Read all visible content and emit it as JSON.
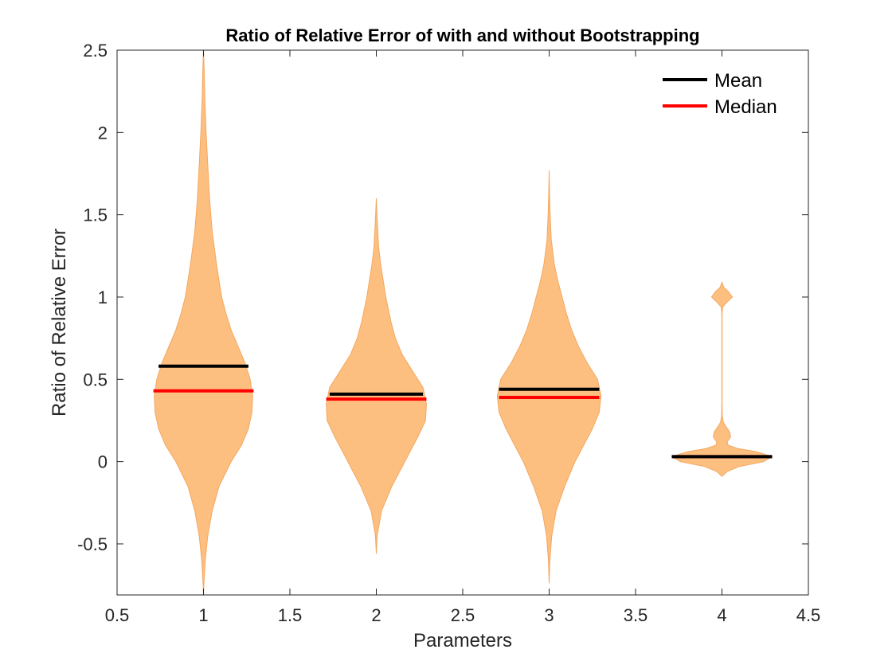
{
  "chart_data": {
    "type": "violin",
    "title": "Ratio of Relative Error of with and without Bootstrapping",
    "xlabel": "Parameters",
    "ylabel": "Ratio of Relative Error",
    "xlim": [
      0.5,
      4.5
    ],
    "ylim": [
      -0.81,
      2.5
    ],
    "xticks": [
      0.5,
      1,
      1.5,
      2,
      2.5,
      3,
      3.5,
      4,
      4.5
    ],
    "xtick_labels": [
      "0.5",
      "1",
      "1.5",
      "2",
      "2.5",
      "3",
      "3.5",
      "4",
      "4.5"
    ],
    "yticks": [
      -0.5,
      0,
      0.5,
      1,
      1.5,
      2,
      2.5
    ],
    "ytick_labels": [
      "-0.5",
      "0",
      "0.5",
      "1",
      "1.5",
      "2",
      "2.5"
    ],
    "grid": false,
    "legend": {
      "placement": "top-right",
      "entries": [
        {
          "label": "Mean",
          "color": "#000000"
        },
        {
          "label": "Median",
          "color": "#ff0000"
        }
      ]
    },
    "colors": {
      "violin_fill": "#fdbf80",
      "violin_edge": "#f4a75f",
      "mean": "#000000",
      "median": "#ff0000"
    },
    "violins": [
      {
        "x": 1,
        "mean": 0.58,
        "median": 0.43,
        "mean_halfwidth": 0.26,
        "median_halfwidth": 0.29,
        "profile": [
          [
            -0.81,
            0.0
          ],
          [
            -0.75,
            0.002
          ],
          [
            -0.6,
            0.01
          ],
          [
            -0.45,
            0.025
          ],
          [
            -0.3,
            0.05
          ],
          [
            -0.15,
            0.09
          ],
          [
            0.0,
            0.16
          ],
          [
            0.1,
            0.22
          ],
          [
            0.2,
            0.26
          ],
          [
            0.3,
            0.28
          ],
          [
            0.4,
            0.285
          ],
          [
            0.5,
            0.27
          ],
          [
            0.6,
            0.24
          ],
          [
            0.7,
            0.2
          ],
          [
            0.8,
            0.16
          ],
          [
            0.9,
            0.13
          ],
          [
            1.0,
            0.105
          ],
          [
            1.2,
            0.075
          ],
          [
            1.4,
            0.05
          ],
          [
            1.6,
            0.035
          ],
          [
            1.8,
            0.025
          ],
          [
            2.0,
            0.015
          ],
          [
            2.2,
            0.008
          ],
          [
            2.4,
            0.003
          ],
          [
            2.5,
            0.0
          ]
        ]
      },
      {
        "x": 2,
        "mean": 0.41,
        "median": 0.38,
        "mean_halfwidth": 0.27,
        "median_halfwidth": 0.29,
        "profile": [
          [
            -0.56,
            0.0
          ],
          [
            -0.45,
            0.005
          ],
          [
            -0.3,
            0.03
          ],
          [
            -0.15,
            0.09
          ],
          [
            -0.05,
            0.14
          ],
          [
            0.05,
            0.19
          ],
          [
            0.15,
            0.24
          ],
          [
            0.25,
            0.285
          ],
          [
            0.35,
            0.29
          ],
          [
            0.45,
            0.27
          ],
          [
            0.55,
            0.21
          ],
          [
            0.65,
            0.15
          ],
          [
            0.75,
            0.11
          ],
          [
            0.85,
            0.085
          ],
          [
            1.0,
            0.055
          ],
          [
            1.1,
            0.04
          ],
          [
            1.2,
            0.025
          ],
          [
            1.3,
            0.014
          ],
          [
            1.45,
            0.006
          ],
          [
            1.6,
            0.0
          ]
        ]
      },
      {
        "x": 3,
        "mean": 0.44,
        "median": 0.39,
        "mean_halfwidth": 0.29,
        "median_halfwidth": 0.29,
        "profile": [
          [
            -0.74,
            0.0
          ],
          [
            -0.6,
            0.004
          ],
          [
            -0.45,
            0.015
          ],
          [
            -0.3,
            0.04
          ],
          [
            -0.15,
            0.09
          ],
          [
            0.0,
            0.15
          ],
          [
            0.1,
            0.2
          ],
          [
            0.2,
            0.25
          ],
          [
            0.3,
            0.29
          ],
          [
            0.4,
            0.3
          ],
          [
            0.5,
            0.28
          ],
          [
            0.6,
            0.22
          ],
          [
            0.7,
            0.17
          ],
          [
            0.8,
            0.13
          ],
          [
            0.9,
            0.1
          ],
          [
            1.0,
            0.075
          ],
          [
            1.1,
            0.05
          ],
          [
            1.2,
            0.03
          ],
          [
            1.35,
            0.012
          ],
          [
            1.5,
            0.006
          ],
          [
            1.65,
            0.002
          ],
          [
            1.77,
            0.0
          ]
        ]
      },
      {
        "x": 4,
        "mean": 0.03,
        "median": 0.03,
        "mean_halfwidth": 0.29,
        "median_halfwidth": 0.29,
        "profile": [
          [
            -0.09,
            0.0
          ],
          [
            -0.06,
            0.03
          ],
          [
            -0.03,
            0.1
          ],
          [
            0.0,
            0.24
          ],
          [
            0.03,
            0.29
          ],
          [
            0.06,
            0.2
          ],
          [
            0.08,
            0.09
          ],
          [
            0.1,
            0.035
          ],
          [
            0.12,
            0.03
          ],
          [
            0.15,
            0.05
          ],
          [
            0.18,
            0.045
          ],
          [
            0.21,
            0.025
          ],
          [
            0.24,
            0.008
          ],
          [
            0.28,
            0.002
          ],
          [
            0.35,
            0.001
          ],
          [
            0.9,
            0.001
          ],
          [
            0.94,
            0.004
          ],
          [
            0.97,
            0.03
          ],
          [
            1.0,
            0.06
          ],
          [
            1.03,
            0.04
          ],
          [
            1.06,
            0.01
          ],
          [
            1.09,
            0.0
          ]
        ]
      }
    ]
  }
}
